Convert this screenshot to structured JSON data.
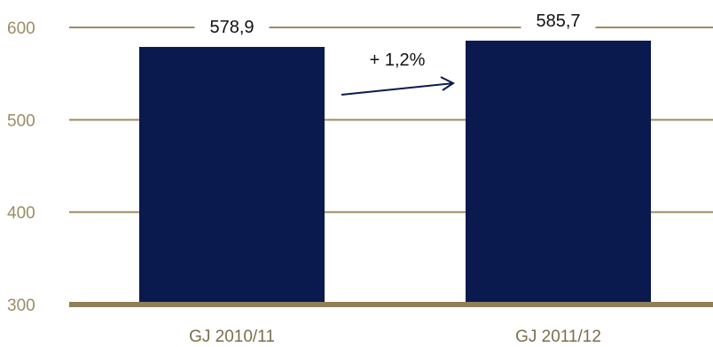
{
  "chart_data": {
    "type": "bar",
    "categories": [
      "GJ 2010/11",
      "GJ 2011/12"
    ],
    "values": [
      578.9,
      585.7
    ],
    "value_labels": [
      "578,9",
      "585,7"
    ],
    "ylim": [
      300,
      600
    ],
    "yticks": [
      300,
      400,
      500,
      600
    ],
    "grid": true,
    "annotation": "+ 1,2%",
    "colors": {
      "bar": "#0A1A4F",
      "grid": "#9A8C63",
      "baseline": "#8F8058",
      "ytick_text": "#9A8C63",
      "xtick_text": "#7A6E4D",
      "arrow": "#0A1A4F"
    }
  }
}
